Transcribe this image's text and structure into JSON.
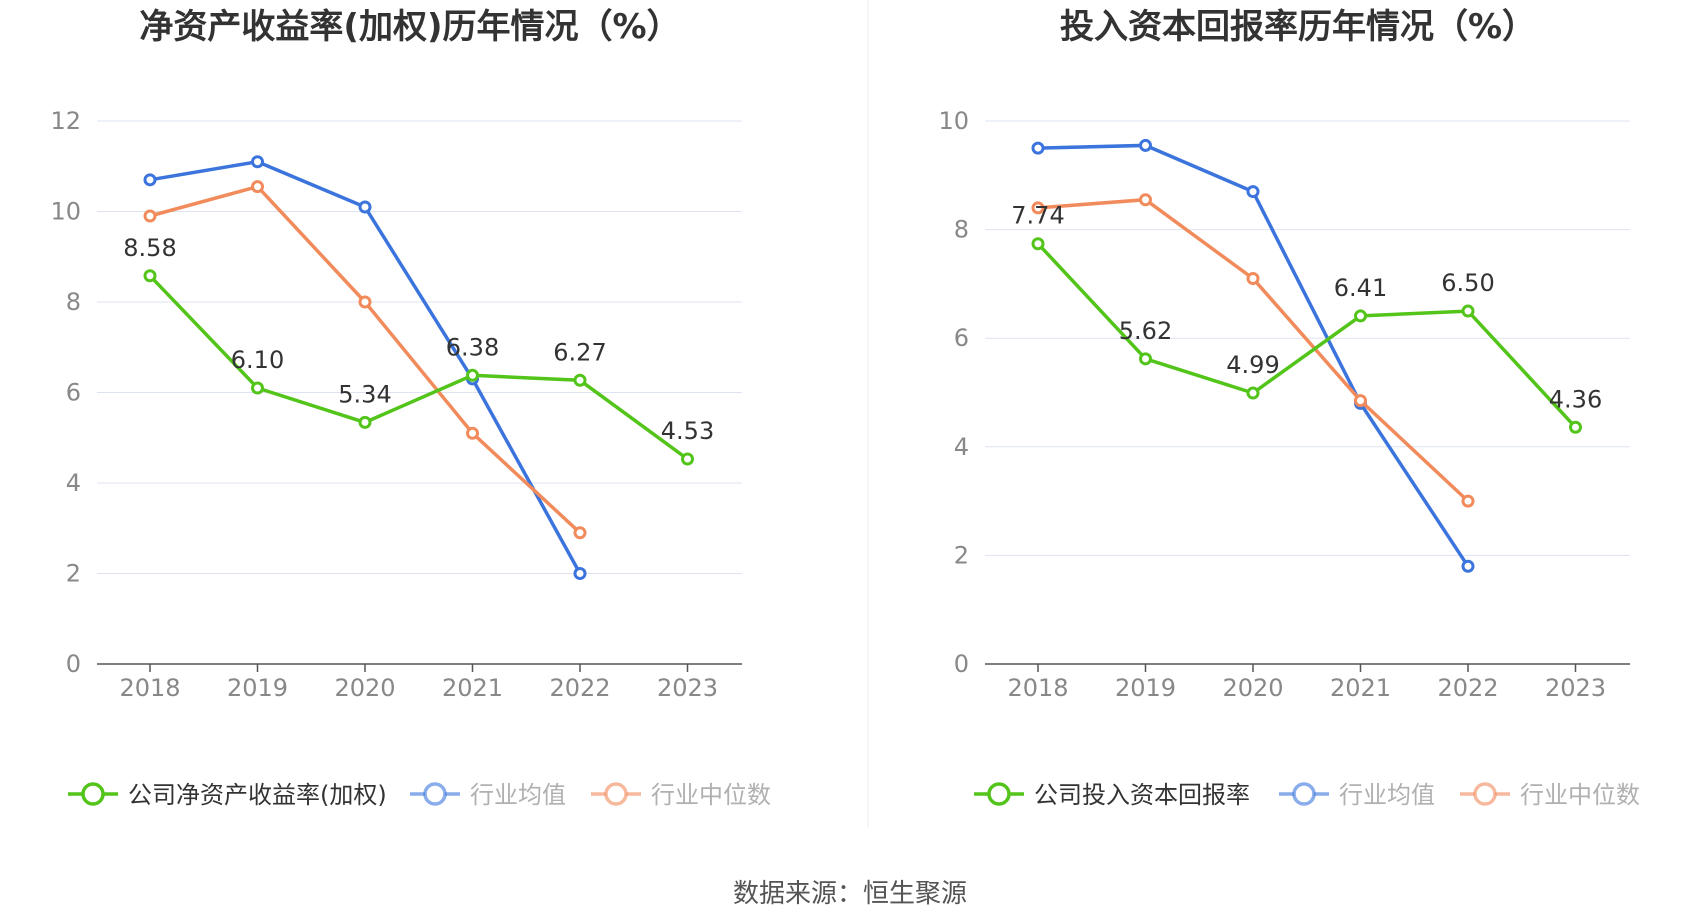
{
  "source_text": "数据来源：恒生聚源",
  "legend_muted_color": "#b0b0b0",
  "legend_active_color": "#333333",
  "chart_data": [
    {
      "type": "line",
      "title": "净资产收益率(加权)历年情况（%）",
      "xlabel": "",
      "ylabel": "",
      "categories": [
        "2018",
        "2019",
        "2020",
        "2021",
        "2022",
        "2023"
      ],
      "ylim": [
        0,
        12
      ],
      "yticks": [
        "0",
        "2",
        "4",
        "6",
        "8",
        "10",
        "12"
      ],
      "grid": true,
      "legend_position": "bottom",
      "series": [
        {
          "name": "公司净资产收益率(加权)",
          "color": "#52c41a",
          "values": [
            8.58,
            6.1,
            5.34,
            6.38,
            6.27,
            4.53
          ],
          "labels": [
            "8.58",
            "6.10",
            "5.34",
            "6.38",
            "6.27",
            "4.53"
          ],
          "legend_state": "active"
        },
        {
          "name": "行业均值",
          "color": "#3b74dc",
          "values": [
            10.7,
            11.1,
            10.1,
            6.3,
            2.0,
            null
          ],
          "legend_state": "muted"
        },
        {
          "name": "行业中位数",
          "color": "#f28b5b",
          "values": [
            9.9,
            10.55,
            8.0,
            5.1,
            2.9,
            null
          ],
          "legend_state": "muted"
        }
      ]
    },
    {
      "type": "line",
      "title": "投入资本回报率历年情况（%）",
      "xlabel": "",
      "ylabel": "",
      "categories": [
        "2018",
        "2019",
        "2020",
        "2021",
        "2022",
        "2023"
      ],
      "ylim": [
        0,
        10
      ],
      "yticks": [
        "0",
        "2",
        "4",
        "6",
        "8",
        "10"
      ],
      "grid": true,
      "legend_position": "bottom",
      "series": [
        {
          "name": "公司投入资本回报率",
          "color": "#52c41a",
          "values": [
            7.74,
            5.62,
            4.99,
            6.41,
            6.5,
            4.36
          ],
          "labels": [
            "7.74",
            "5.62",
            "4.99",
            "6.41",
            "6.50",
            "4.36"
          ],
          "legend_state": "active"
        },
        {
          "name": "行业均值",
          "color": "#3b74dc",
          "values": [
            9.5,
            9.55,
            8.7,
            4.8,
            1.8,
            null
          ],
          "legend_state": "muted"
        },
        {
          "name": "行业中位数",
          "color": "#f28b5b",
          "values": [
            8.4,
            8.55,
            7.1,
            4.85,
            3.0,
            null
          ],
          "legend_state": "muted"
        }
      ]
    }
  ]
}
